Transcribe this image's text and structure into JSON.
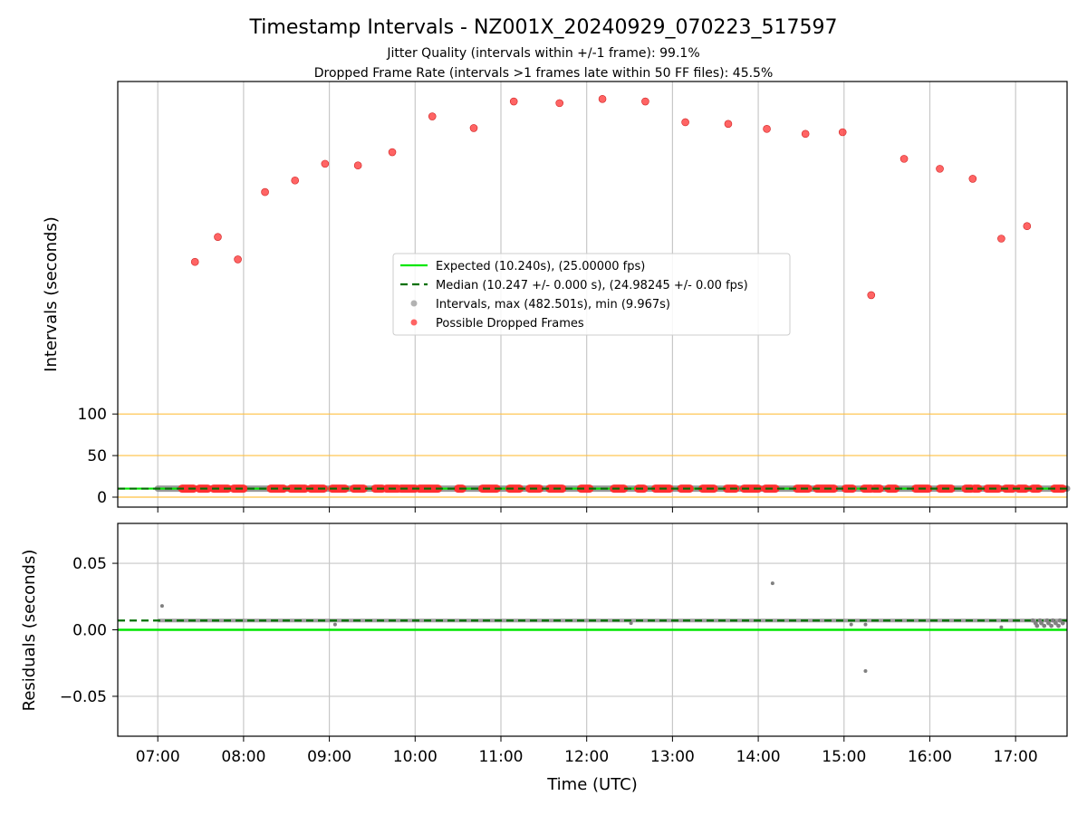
{
  "title": "Timestamp Intervals - NZ001X_20240929_070223_517597",
  "subtitle_1": "Jitter Quality (intervals within +/-1 frame): 99.1%",
  "subtitle_2": "Dropped Frame Rate (intervals >1 frames late within 50 FF files): 45.5%",
  "colors": {
    "expected": "#00e600",
    "median": "#007000",
    "intervals": "#808080",
    "dropped": "#ff3030",
    "threshold": "#ffc040",
    "grid": "#c8c8c8"
  },
  "chart_data": [
    {
      "type": "scatter",
      "panel": "intervals",
      "xlabel": "",
      "ylabel": "Intervals (seconds)",
      "x_ticks": [
        "07:00",
        "08:00",
        "09:00",
        "10:00",
        "11:00",
        "12:00",
        "13:00",
        "14:00",
        "15:00",
        "16:00",
        "17:00"
      ],
      "x_range": [
        "06:32",
        "17:36"
      ],
      "y_ticks": [
        0,
        50,
        100
      ],
      "ylim": [
        -12,
        500
      ],
      "threshold_lines": [
        0,
        50,
        100
      ],
      "grid": "vertical",
      "legend_position": "center",
      "legend": [
        {
          "label": "Expected (10.240s), (25.00000 fps)",
          "kind": "solid-line"
        },
        {
          "label": "Median (10.247 +/- 0.000 s), (24.98245 +/- 0.00 fps)",
          "kind": "dashed-line"
        },
        {
          "label": "Intervals, max (482.501s), min (9.967s)",
          "kind": "gray-dot"
        },
        {
          "label": "Possible Dropped Frames",
          "kind": "red-dot"
        }
      ],
      "expected": 10.24,
      "median": 10.247,
      "baseline_interval": 10.24,
      "dropped_frames_outliers": [
        {
          "x": "07:26",
          "y": 283
        },
        {
          "x": "07:42",
          "y": 313
        },
        {
          "x": "07:56",
          "y": 286
        },
        {
          "x": "08:15",
          "y": 367
        },
        {
          "x": "08:36",
          "y": 381
        },
        {
          "x": "08:57",
          "y": 401
        },
        {
          "x": "09:20",
          "y": 399
        },
        {
          "x": "09:44",
          "y": 415
        },
        {
          "x": "10:12",
          "y": 458
        },
        {
          "x": "10:41",
          "y": 444
        },
        {
          "x": "11:09",
          "y": 476
        },
        {
          "x": "11:41",
          "y": 474
        },
        {
          "x": "12:11",
          "y": 479
        },
        {
          "x": "12:41",
          "y": 476
        },
        {
          "x": "13:09",
          "y": 451
        },
        {
          "x": "13:39",
          "y": 449
        },
        {
          "x": "14:06",
          "y": 443
        },
        {
          "x": "14:33",
          "y": 437
        },
        {
          "x": "14:59",
          "y": 439
        },
        {
          "x": "15:19",
          "y": 243
        },
        {
          "x": "15:42",
          "y": 407
        },
        {
          "x": "16:07",
          "y": 395
        },
        {
          "x": "16:30",
          "y": 383
        },
        {
          "x": "16:50",
          "y": 311
        },
        {
          "x": "17:08",
          "y": 326
        }
      ],
      "dropped_frames_low_segments": [
        [
          "07:17",
          "07:25"
        ],
        [
          "07:29",
          "07:35"
        ],
        [
          "07:39",
          "07:49"
        ],
        [
          "07:53",
          "08:00"
        ],
        [
          "08:19",
          "08:28"
        ],
        [
          "08:33",
          "08:43"
        ],
        [
          "08:47",
          "08:56"
        ],
        [
          "09:02",
          "09:11"
        ],
        [
          "09:17",
          "09:24"
        ],
        [
          "09:32",
          "09:37"
        ],
        [
          "09:40",
          "09:48"
        ],
        [
          "09:50",
          "10:00"
        ],
        [
          "10:03",
          "10:16"
        ],
        [
          "10:30",
          "10:33"
        ],
        [
          "10:47",
          "10:57"
        ],
        [
          "11:06",
          "11:13"
        ],
        [
          "11:20",
          "11:27"
        ],
        [
          "11:34",
          "11:43"
        ],
        [
          "11:56",
          "12:02"
        ],
        [
          "12:19",
          "12:26"
        ],
        [
          "12:36",
          "12:40"
        ],
        [
          "12:48",
          "12:58"
        ],
        [
          "13:06",
          "13:12"
        ],
        [
          "13:21",
          "13:29"
        ],
        [
          "13:38",
          "13:44"
        ],
        [
          "13:50",
          "14:00"
        ],
        [
          "14:05",
          "14:12"
        ],
        [
          "14:27",
          "14:35"
        ],
        [
          "14:41",
          "14:53"
        ],
        [
          "15:01",
          "15:06"
        ],
        [
          "15:14",
          "15:19"
        ],
        [
          "15:21",
          "15:25"
        ],
        [
          "15:31",
          "15:36"
        ],
        [
          "15:50",
          "15:59"
        ],
        [
          "16:07",
          "16:15"
        ],
        [
          "16:25",
          "16:29"
        ],
        [
          "16:31",
          "16:34"
        ],
        [
          "16:40",
          "16:48"
        ],
        [
          "16:53",
          "16:58"
        ],
        [
          "17:02",
          "17:07"
        ],
        [
          "17:12",
          "17:16"
        ],
        [
          "17:27",
          "17:33"
        ]
      ]
    },
    {
      "type": "scatter",
      "panel": "residuals",
      "xlabel": "Time (UTC)",
      "ylabel": "Residuals (seconds)",
      "x_ticks": [
        "07:00",
        "08:00",
        "09:00",
        "10:00",
        "11:00",
        "12:00",
        "13:00",
        "14:00",
        "15:00",
        "16:00",
        "17:00"
      ],
      "x_range": [
        "06:32",
        "17:36"
      ],
      "y_ticks": [
        0.05,
        0.0,
        -0.05
      ],
      "y_tick_labels": [
        "0.05",
        "0.00",
        "−0.05"
      ],
      "ylim": [
        -0.08,
        0.08
      ],
      "grid": "both",
      "expected_residual": 0.0,
      "median_residual": 0.007,
      "typical_residual": 0.007,
      "residual_outliers": [
        {
          "x": "07:03",
          "y": 0.018
        },
        {
          "x": "09:04",
          "y": 0.004
        },
        {
          "x": "12:31",
          "y": 0.005
        },
        {
          "x": "14:10",
          "y": 0.035
        },
        {
          "x": "15:05",
          "y": 0.004
        },
        {
          "x": "15:15",
          "y": -0.031
        },
        {
          "x": "15:15",
          "y": 0.004
        },
        {
          "x": "16:50",
          "y": 0.002
        }
      ]
    }
  ]
}
